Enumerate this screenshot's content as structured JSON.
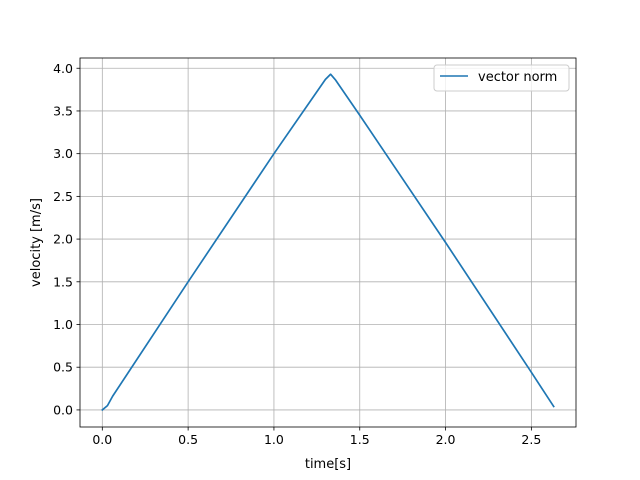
{
  "chart_data": {
    "type": "line",
    "xlabel": "time[s]",
    "ylabel": "velocity [m/s]",
    "xlim": [
      -0.13,
      2.76
    ],
    "ylim": [
      -0.2,
      4.12
    ],
    "xticks": [
      0.0,
      0.5,
      1.0,
      1.5,
      2.0,
      2.5
    ],
    "xtick_labels": [
      "0.0",
      "0.5",
      "1.0",
      "1.5",
      "2.0",
      "2.5"
    ],
    "yticks": [
      0.0,
      0.5,
      1.0,
      1.5,
      2.0,
      2.5,
      3.0,
      3.5,
      4.0
    ],
    "ytick_labels": [
      "0.0",
      "0.5",
      "1.0",
      "1.5",
      "2.0",
      "2.5",
      "3.0",
      "3.5",
      "4.0"
    ],
    "grid": true,
    "legend_position": "top-right",
    "series": [
      {
        "name": "vector norm",
        "color": "#1f77b4",
        "x": [
          0.0,
          0.03,
          0.06,
          0.5,
          1.0,
          1.3,
          1.33,
          1.36,
          1.5,
          2.0,
          2.5,
          2.63
        ],
        "y": [
          0.0,
          0.05,
          0.16,
          1.5,
          3.0,
          3.87,
          3.93,
          3.86,
          3.45,
          1.96,
          0.44,
          0.04
        ]
      }
    ]
  }
}
